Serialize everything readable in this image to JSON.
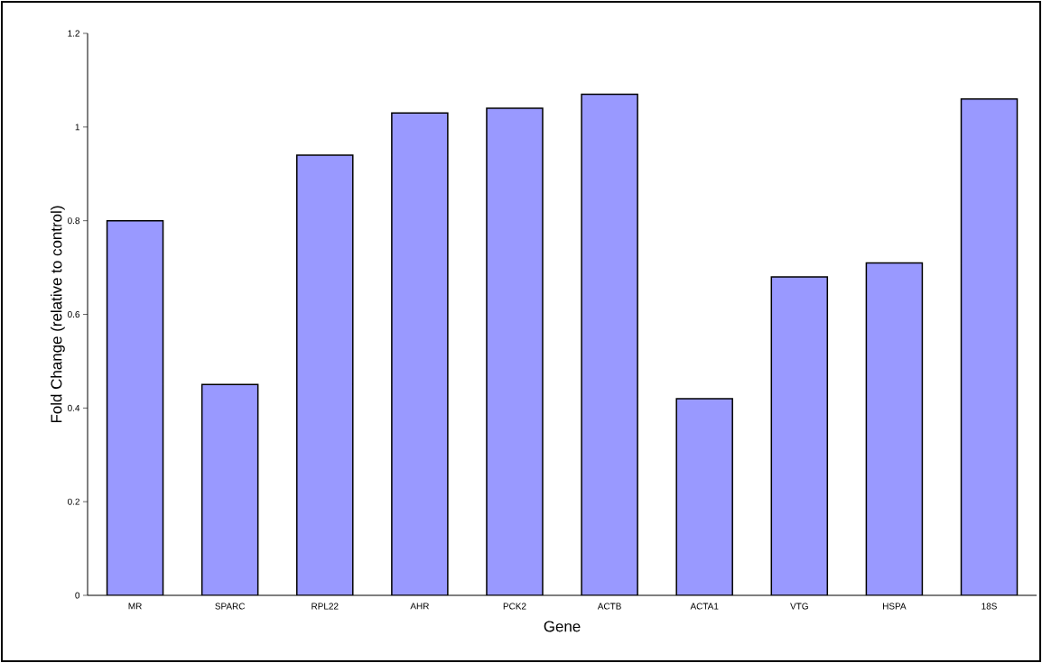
{
  "chart_data": {
    "type": "bar",
    "xlabel": "Gene",
    "ylabel": "Fold Change (relative to control)",
    "categories": [
      "MR",
      "SPARC",
      "RPL22",
      "AHR",
      "PCK2",
      "ACTB",
      "ACTA1",
      "VTG",
      "HSPA",
      "18S"
    ],
    "values": [
      0.8,
      0.45,
      0.94,
      1.03,
      1.04,
      1.07,
      0.42,
      0.68,
      0.71,
      1.06
    ],
    "color": "#9999ff",
    "ylim": [
      0,
      1.2
    ],
    "yticks": [
      0,
      0.2,
      0.4,
      0.6,
      0.8,
      1,
      1.2
    ],
    "grid": false
  }
}
